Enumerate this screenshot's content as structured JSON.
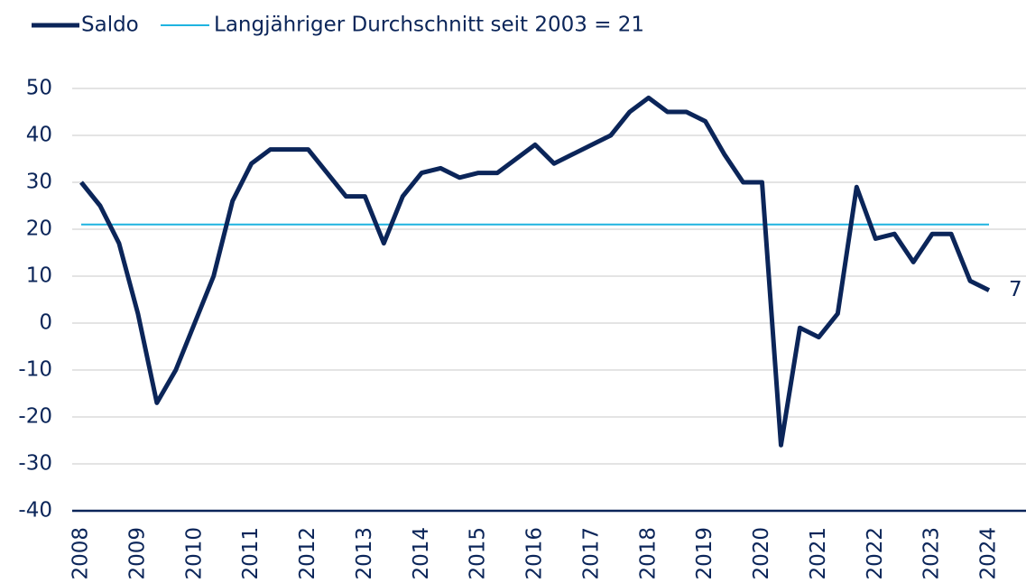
{
  "chart_data": {
    "type": "line",
    "categories": [
      "2008",
      null,
      null,
      "2009",
      null,
      null,
      "2010",
      null,
      null,
      "2011",
      null,
      null,
      "2012",
      null,
      null,
      "2013",
      null,
      null,
      "2014",
      null,
      null,
      "2015",
      null,
      null,
      "2016",
      null,
      null,
      "2017",
      null,
      null,
      "2018",
      null,
      null,
      "2019",
      null,
      null,
      "2020",
      null,
      null,
      "2021",
      null,
      null,
      "2022",
      null,
      null,
      "2023",
      null,
      null,
      "2024"
    ],
    "series": [
      {
        "name": "Saldo",
        "color": "#0b2559",
        "values": [
          30,
          25,
          17,
          2,
          -17,
          -10,
          0,
          10,
          26,
          34,
          37,
          37,
          37,
          32,
          27,
          27,
          17,
          27,
          32,
          33,
          31,
          32,
          32,
          35,
          38,
          34,
          36,
          38,
          40,
          45,
          48,
          45,
          45,
          43,
          36,
          30,
          30,
          -26,
          -1,
          -3,
          2,
          29,
          18,
          19,
          13,
          19,
          19,
          9,
          7
        ]
      }
    ],
    "reference_line": {
      "name": "Langjähriger Durchschnitt seit 2003 = 21",
      "value": 21,
      "color": "#1fb4e0"
    },
    "ylim": [
      -40,
      50
    ],
    "yticks": [
      -40,
      -30,
      -20,
      -10,
      0,
      10,
      20,
      30,
      40,
      50
    ],
    "grid": true
  }
}
